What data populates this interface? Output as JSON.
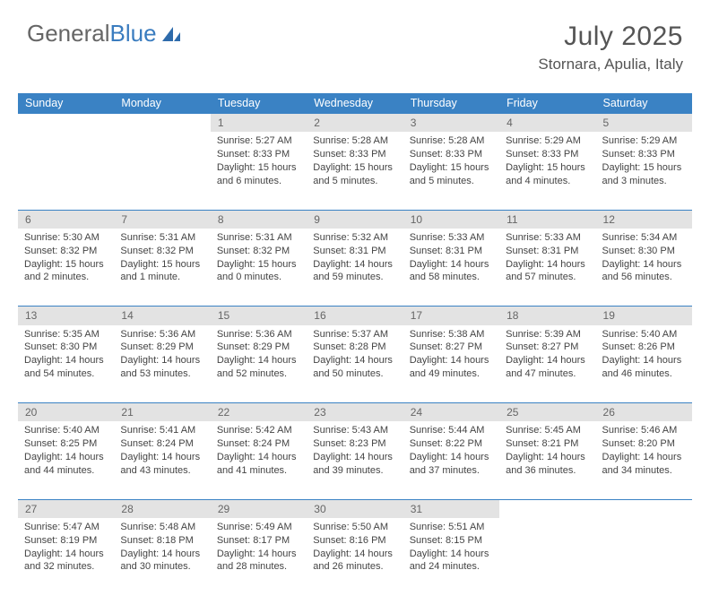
{
  "brand": {
    "part1": "General",
    "part2": "Blue"
  },
  "header": {
    "month_title": "July 2025",
    "location": "Stornara, Apulia, Italy"
  },
  "colors": {
    "header_bg": "#3a82c4",
    "header_text": "#ffffff",
    "daynum_bg": "#e3e3e3",
    "daynum_text": "#666666",
    "cell_text": "#444444",
    "border_color": "#3a82c4",
    "logo_gray": "#666666",
    "logo_blue": "#3a7cbf"
  },
  "fonts": {
    "title_pt": 30,
    "location_pt": 17,
    "header_pt": 12.5,
    "daynum_pt": 12,
    "cell_pt": 11
  },
  "day_headers": [
    "Sunday",
    "Monday",
    "Tuesday",
    "Wednesday",
    "Thursday",
    "Friday",
    "Saturday"
  ],
  "weeks": [
    {
      "nums": [
        "",
        "",
        "1",
        "2",
        "3",
        "4",
        "5"
      ],
      "cells": [
        null,
        null,
        {
          "sunrise": "Sunrise: 5:27 AM",
          "sunset": "Sunset: 8:33 PM",
          "day1": "Daylight: 15 hours",
          "day2": "and 6 minutes."
        },
        {
          "sunrise": "Sunrise: 5:28 AM",
          "sunset": "Sunset: 8:33 PM",
          "day1": "Daylight: 15 hours",
          "day2": "and 5 minutes."
        },
        {
          "sunrise": "Sunrise: 5:28 AM",
          "sunset": "Sunset: 8:33 PM",
          "day1": "Daylight: 15 hours",
          "day2": "and 5 minutes."
        },
        {
          "sunrise": "Sunrise: 5:29 AM",
          "sunset": "Sunset: 8:33 PM",
          "day1": "Daylight: 15 hours",
          "day2": "and 4 minutes."
        },
        {
          "sunrise": "Sunrise: 5:29 AM",
          "sunset": "Sunset: 8:33 PM",
          "day1": "Daylight: 15 hours",
          "day2": "and 3 minutes."
        }
      ]
    },
    {
      "nums": [
        "6",
        "7",
        "8",
        "9",
        "10",
        "11",
        "12"
      ],
      "cells": [
        {
          "sunrise": "Sunrise: 5:30 AM",
          "sunset": "Sunset: 8:32 PM",
          "day1": "Daylight: 15 hours",
          "day2": "and 2 minutes."
        },
        {
          "sunrise": "Sunrise: 5:31 AM",
          "sunset": "Sunset: 8:32 PM",
          "day1": "Daylight: 15 hours",
          "day2": "and 1 minute."
        },
        {
          "sunrise": "Sunrise: 5:31 AM",
          "sunset": "Sunset: 8:32 PM",
          "day1": "Daylight: 15 hours",
          "day2": "and 0 minutes."
        },
        {
          "sunrise": "Sunrise: 5:32 AM",
          "sunset": "Sunset: 8:31 PM",
          "day1": "Daylight: 14 hours",
          "day2": "and 59 minutes."
        },
        {
          "sunrise": "Sunrise: 5:33 AM",
          "sunset": "Sunset: 8:31 PM",
          "day1": "Daylight: 14 hours",
          "day2": "and 58 minutes."
        },
        {
          "sunrise": "Sunrise: 5:33 AM",
          "sunset": "Sunset: 8:31 PM",
          "day1": "Daylight: 14 hours",
          "day2": "and 57 minutes."
        },
        {
          "sunrise": "Sunrise: 5:34 AM",
          "sunset": "Sunset: 8:30 PM",
          "day1": "Daylight: 14 hours",
          "day2": "and 56 minutes."
        }
      ]
    },
    {
      "nums": [
        "13",
        "14",
        "15",
        "16",
        "17",
        "18",
        "19"
      ],
      "cells": [
        {
          "sunrise": "Sunrise: 5:35 AM",
          "sunset": "Sunset: 8:30 PM",
          "day1": "Daylight: 14 hours",
          "day2": "and 54 minutes."
        },
        {
          "sunrise": "Sunrise: 5:36 AM",
          "sunset": "Sunset: 8:29 PM",
          "day1": "Daylight: 14 hours",
          "day2": "and 53 minutes."
        },
        {
          "sunrise": "Sunrise: 5:36 AM",
          "sunset": "Sunset: 8:29 PM",
          "day1": "Daylight: 14 hours",
          "day2": "and 52 minutes."
        },
        {
          "sunrise": "Sunrise: 5:37 AM",
          "sunset": "Sunset: 8:28 PM",
          "day1": "Daylight: 14 hours",
          "day2": "and 50 minutes."
        },
        {
          "sunrise": "Sunrise: 5:38 AM",
          "sunset": "Sunset: 8:27 PM",
          "day1": "Daylight: 14 hours",
          "day2": "and 49 minutes."
        },
        {
          "sunrise": "Sunrise: 5:39 AM",
          "sunset": "Sunset: 8:27 PM",
          "day1": "Daylight: 14 hours",
          "day2": "and 47 minutes."
        },
        {
          "sunrise": "Sunrise: 5:40 AM",
          "sunset": "Sunset: 8:26 PM",
          "day1": "Daylight: 14 hours",
          "day2": "and 46 minutes."
        }
      ]
    },
    {
      "nums": [
        "20",
        "21",
        "22",
        "23",
        "24",
        "25",
        "26"
      ],
      "cells": [
        {
          "sunrise": "Sunrise: 5:40 AM",
          "sunset": "Sunset: 8:25 PM",
          "day1": "Daylight: 14 hours",
          "day2": "and 44 minutes."
        },
        {
          "sunrise": "Sunrise: 5:41 AM",
          "sunset": "Sunset: 8:24 PM",
          "day1": "Daylight: 14 hours",
          "day2": "and 43 minutes."
        },
        {
          "sunrise": "Sunrise: 5:42 AM",
          "sunset": "Sunset: 8:24 PM",
          "day1": "Daylight: 14 hours",
          "day2": "and 41 minutes."
        },
        {
          "sunrise": "Sunrise: 5:43 AM",
          "sunset": "Sunset: 8:23 PM",
          "day1": "Daylight: 14 hours",
          "day2": "and 39 minutes."
        },
        {
          "sunrise": "Sunrise: 5:44 AM",
          "sunset": "Sunset: 8:22 PM",
          "day1": "Daylight: 14 hours",
          "day2": "and 37 minutes."
        },
        {
          "sunrise": "Sunrise: 5:45 AM",
          "sunset": "Sunset: 8:21 PM",
          "day1": "Daylight: 14 hours",
          "day2": "and 36 minutes."
        },
        {
          "sunrise": "Sunrise: 5:46 AM",
          "sunset": "Sunset: 8:20 PM",
          "day1": "Daylight: 14 hours",
          "day2": "and 34 minutes."
        }
      ]
    },
    {
      "nums": [
        "27",
        "28",
        "29",
        "30",
        "31",
        "",
        ""
      ],
      "cells": [
        {
          "sunrise": "Sunrise: 5:47 AM",
          "sunset": "Sunset: 8:19 PM",
          "day1": "Daylight: 14 hours",
          "day2": "and 32 minutes."
        },
        {
          "sunrise": "Sunrise: 5:48 AM",
          "sunset": "Sunset: 8:18 PM",
          "day1": "Daylight: 14 hours",
          "day2": "and 30 minutes."
        },
        {
          "sunrise": "Sunrise: 5:49 AM",
          "sunset": "Sunset: 8:17 PM",
          "day1": "Daylight: 14 hours",
          "day2": "and 28 minutes."
        },
        {
          "sunrise": "Sunrise: 5:50 AM",
          "sunset": "Sunset: 8:16 PM",
          "day1": "Daylight: 14 hours",
          "day2": "and 26 minutes."
        },
        {
          "sunrise": "Sunrise: 5:51 AM",
          "sunset": "Sunset: 8:15 PM",
          "day1": "Daylight: 14 hours",
          "day2": "and 24 minutes."
        },
        null,
        null
      ]
    }
  ]
}
